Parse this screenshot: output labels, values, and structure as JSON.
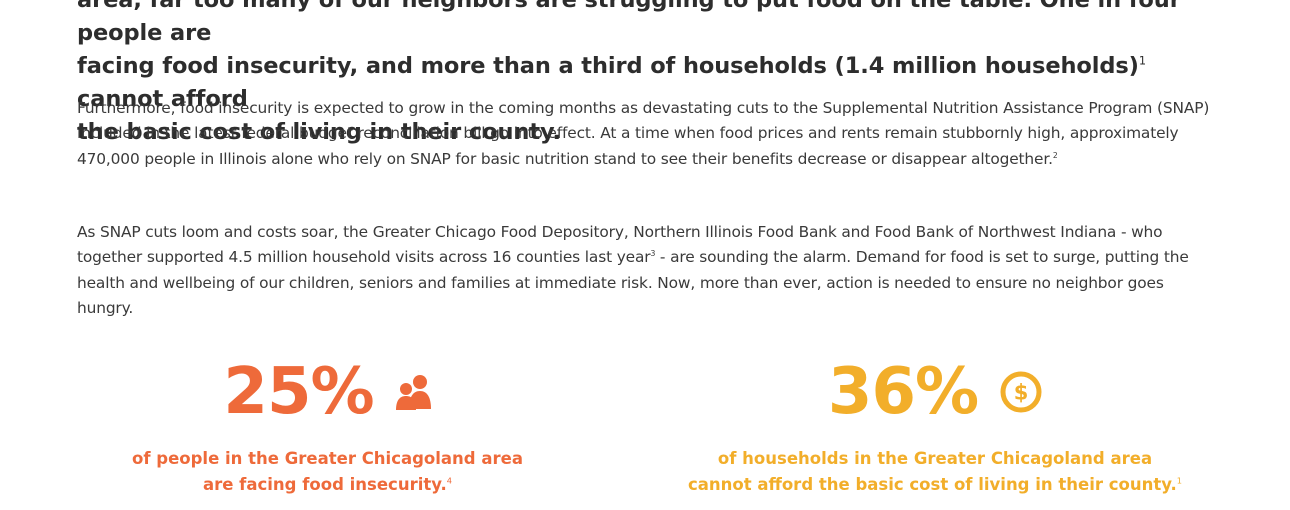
{
  "lead": {
    "line1": "area, far too many of our neighbors are struggling to put food on the table. One in four people are",
    "line2_text": "facing food insecurity, and more than a third of households (1.4 million households)",
    "line2_sup": "1",
    "line2_tail": " cannot afford",
    "line3": "the basic cost of living in their county."
  },
  "paragraph1": {
    "text": "Furthermore, food insecurity is expected to grow in the coming months as devastating cuts to the Supplemental Nutrition Assistance Program (SNAP) included in the latest federal budget reconciliation bill go into effect. At a time when food prices and rents remain stubbornly high, approximately 470,000 people in Illinois alone who rely on SNAP for basic nutrition stand to see their benefits decrease or disappear altogether.",
    "sup": "2"
  },
  "paragraph2": {
    "text_before": "As SNAP cuts loom and costs soar, the Greater Chicago Food Depository, Northern Illinois Food Bank and Food Bank of Northwest Indiana - who together supported 4.5 million household visits across 16 counties last year",
    "sup": "3",
    "text_after": " - are sounding the alarm. Demand for food is set to surge, putting the health and wellbeing of our children, seniors and families at immediate risk. Now, more than ever, action is needed to ensure no neighbor goes hungry."
  },
  "stats": [
    {
      "value": "25%",
      "icon": "people-icon",
      "color": "#ee6a3a",
      "caption_line1": "of people in the Greater Chicagoland area",
      "caption_line2": "are facing food insecurity.",
      "caption_sup": "4"
    },
    {
      "value": "36%",
      "icon": "dollar-coin-icon",
      "color": "#f2ae2a",
      "caption_line1": "of households in the Greater Chicagoland area",
      "caption_line2": "cannot afford the basic cost of living in their county.",
      "caption_sup": "1"
    }
  ]
}
